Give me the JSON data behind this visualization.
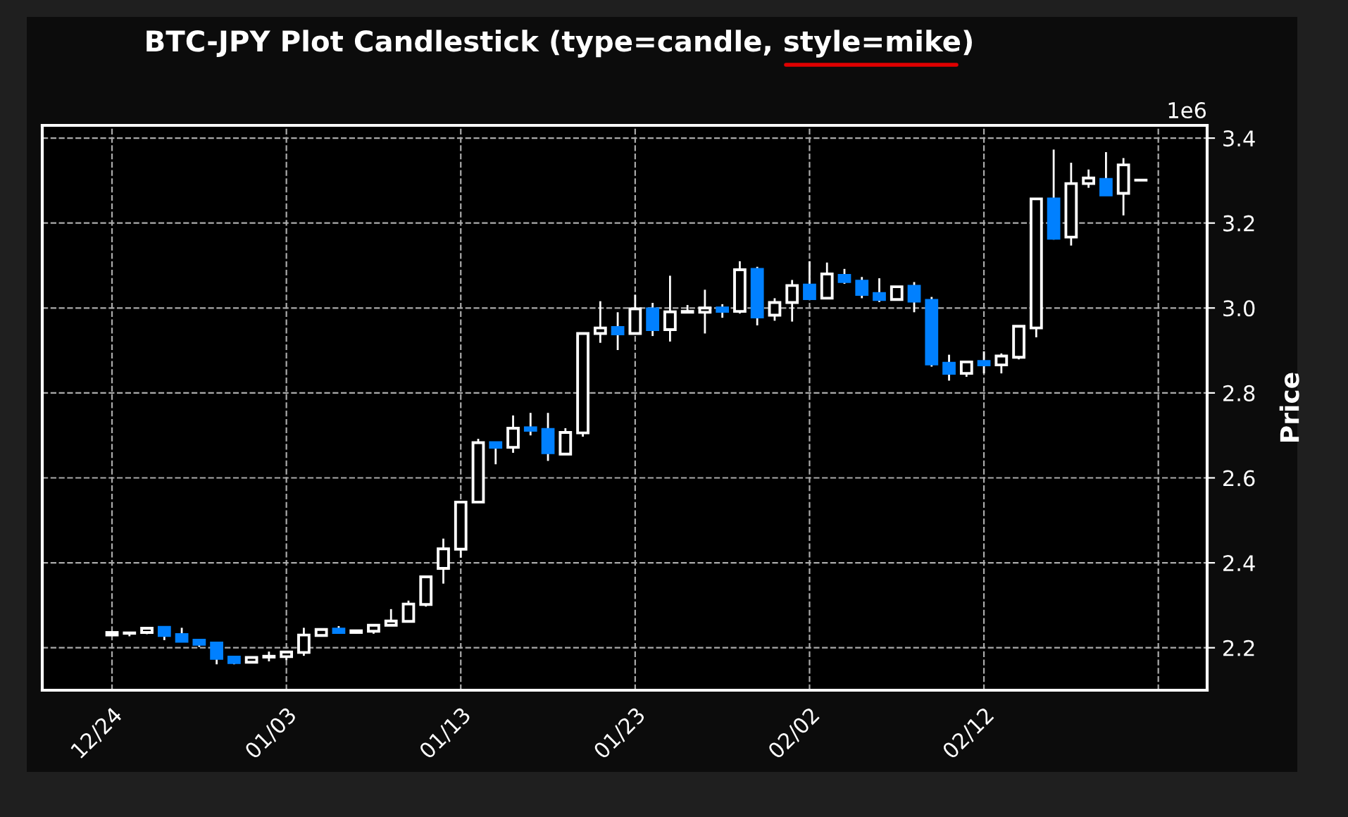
{
  "chart_data": {
    "type": "candlestick",
    "title": "BTC-JPY Plot Candlestick (type=candle, style=mike)",
    "ylabel": "Price",
    "annotations": [
      "1e6"
    ],
    "categories": [
      "12/24",
      null,
      null,
      null,
      null,
      null,
      null,
      null,
      null,
      null,
      "01/03",
      null,
      null,
      null,
      null,
      null,
      null,
      null,
      null,
      null,
      "01/13",
      null,
      null,
      null,
      null,
      null,
      null,
      null,
      null,
      null,
      "01/23",
      null,
      null,
      null,
      null,
      null,
      null,
      null,
      null,
      null,
      "02/02",
      null,
      null,
      null,
      null,
      null,
      null,
      null,
      null,
      null,
      "02/12",
      null,
      null,
      null,
      null,
      null,
      null,
      null,
      null,
      null
    ],
    "ohlc": [
      [
        2.23,
        2.238,
        2.228,
        2.236
      ],
      [
        2.234,
        2.236,
        2.227,
        2.235
      ],
      [
        2.236,
        2.247,
        2.232,
        2.246
      ],
      [
        2.248,
        2.25,
        2.218,
        2.229
      ],
      [
        2.231,
        2.247,
        2.214,
        2.215
      ],
      [
        2.218,
        2.219,
        2.202,
        2.208
      ],
      [
        2.211,
        2.213,
        2.161,
        2.175
      ],
      [
        2.178,
        2.181,
        2.161,
        2.165
      ],
      [
        2.166,
        2.178,
        2.164,
        2.177
      ],
      [
        2.178,
        2.191,
        2.168,
        2.18
      ],
      [
        2.179,
        2.191,
        2.171,
        2.19
      ],
      [
        2.189,
        2.247,
        2.181,
        2.23
      ],
      [
        2.229,
        2.245,
        2.227,
        2.243
      ],
      [
        2.244,
        2.251,
        2.234,
        2.236
      ],
      [
        2.236,
        2.241,
        2.234,
        2.24
      ],
      [
        2.239,
        2.254,
        2.233,
        2.253
      ],
      [
        2.253,
        2.291,
        2.252,
        2.263
      ],
      [
        2.262,
        2.311,
        2.261,
        2.303
      ],
      [
        2.302,
        2.368,
        2.297,
        2.367
      ],
      [
        2.387,
        2.457,
        2.351,
        2.433
      ],
      [
        2.432,
        2.544,
        2.412,
        2.543
      ],
      [
        2.543,
        2.692,
        2.542,
        2.683
      ],
      [
        2.683,
        2.684,
        2.632,
        2.672
      ],
      [
        2.672,
        2.747,
        2.659,
        2.717
      ],
      [
        2.718,
        2.753,
        2.7,
        2.712
      ],
      [
        2.714,
        2.753,
        2.64,
        2.659
      ],
      [
        2.656,
        2.717,
        2.655,
        2.707
      ],
      [
        2.706,
        2.941,
        2.697,
        2.94
      ],
      [
        2.94,
        3.016,
        2.918,
        2.953
      ],
      [
        2.954,
        2.99,
        2.901,
        2.939
      ],
      [
        2.94,
        3.031,
        2.938,
        2.998
      ],
      [
        2.998,
        3.012,
        2.934,
        2.949
      ],
      [
        2.949,
        3.076,
        2.921,
        2.991
      ],
      [
        2.99,
        3.007,
        2.988,
        2.992
      ],
      [
        2.99,
        3.043,
        2.94,
        3.0
      ],
      [
        3.0,
        3.009,
        2.977,
        2.992
      ],
      [
        2.992,
        3.11,
        2.987,
        3.09
      ],
      [
        3.091,
        3.097,
        2.959,
        2.979
      ],
      [
        2.983,
        3.023,
        2.97,
        3.013
      ],
      [
        3.013,
        3.066,
        2.968,
        3.053
      ],
      [
        3.054,
        3.11,
        3.021,
        3.022
      ],
      [
        3.023,
        3.107,
        3.022,
        3.08
      ],
      [
        3.077,
        3.092,
        3.057,
        3.062
      ],
      [
        3.063,
        3.073,
        3.023,
        3.032
      ],
      [
        3.034,
        3.07,
        3.014,
        3.02
      ],
      [
        3.02,
        3.051,
        3.019,
        3.05
      ],
      [
        3.051,
        3.061,
        2.99,
        3.016
      ],
      [
        3.018,
        3.026,
        2.862,
        2.868
      ],
      [
        2.87,
        2.89,
        2.829,
        2.846
      ],
      [
        2.846,
        2.874,
        2.838,
        2.873
      ],
      [
        2.874,
        2.898,
        2.846,
        2.866
      ],
      [
        2.866,
        2.893,
        2.846,
        2.887
      ],
      [
        2.884,
        2.958,
        2.879,
        2.957
      ],
      [
        2.953,
        3.258,
        2.931,
        3.257
      ],
      [
        3.257,
        3.373,
        3.161,
        3.164
      ],
      [
        3.167,
        3.342,
        3.147,
        3.293
      ],
      [
        3.293,
        3.326,
        3.283,
        3.306
      ],
      [
        3.303,
        3.367,
        3.265,
        3.266
      ],
      [
        3.27,
        3.353,
        3.218,
        3.337
      ],
      [
        3.301,
        3.302,
        3.3,
        3.301
      ]
    ],
    "colors": [
      "#ffffff",
      "#ffffff",
      "#ffffff",
      "#0080ff",
      "#0080ff",
      "#0080ff",
      "#0080ff",
      "#0080ff",
      "#ffffff",
      "#ffffff",
      "#ffffff",
      "#ffffff",
      "#ffffff",
      "#0080ff",
      "#ffffff",
      "#ffffff",
      "#ffffff",
      "#ffffff",
      "#ffffff",
      "#ffffff",
      "#ffffff",
      "#ffffff",
      "#0080ff",
      "#ffffff",
      "#0080ff",
      "#0080ff",
      "#ffffff",
      "#ffffff",
      "#ffffff",
      "#0080ff",
      "#ffffff",
      "#0080ff",
      "#ffffff",
      "#ffffff",
      "#ffffff",
      "#0080ff",
      "#ffffff",
      "#0080ff",
      "#ffffff",
      "#ffffff",
      "#0080ff",
      "#ffffff",
      "#0080ff",
      "#0080ff",
      "#0080ff",
      "#ffffff",
      "#0080ff",
      "#0080ff",
      "#0080ff",
      "#ffffff",
      "#0080ff",
      "#ffffff",
      "#ffffff",
      "#ffffff",
      "#0080ff",
      "#ffffff",
      "#ffffff",
      "#0080ff",
      "#ffffff",
      "#ffffff"
    ],
    "ylim": [
      2.1,
      3.43
    ],
    "yticks": [
      {
        "value": 2.2,
        "label": "2.2"
      },
      {
        "value": 2.4,
        "label": "2.4"
      },
      {
        "value": 2.6,
        "label": "2.6"
      },
      {
        "value": 2.8,
        "label": "2.8"
      },
      {
        "value": 3.0,
        "label": "3.0"
      },
      {
        "value": 3.2,
        "label": "3.2"
      },
      {
        "value": 3.4,
        "label": "3.4"
      }
    ],
    "grid": true
  }
}
